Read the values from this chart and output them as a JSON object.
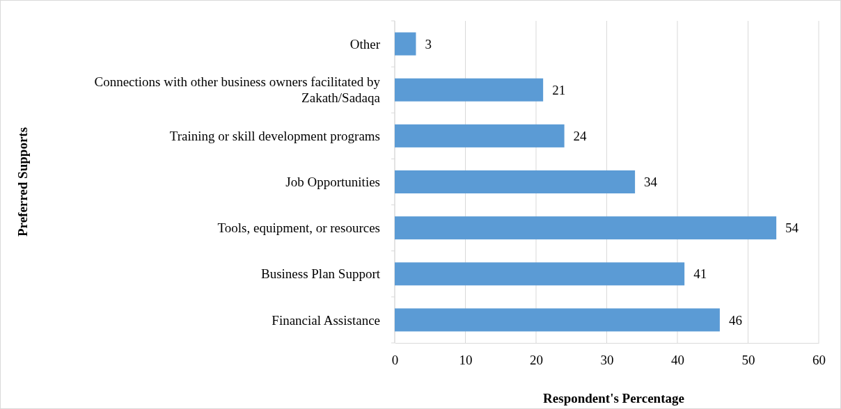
{
  "chart_data": {
    "type": "bar",
    "orientation": "horizontal",
    "xlabel": "Respondent's Percentage",
    "ylabel": "Preferred Supports",
    "categories": [
      "Other",
      "Connections with other business owners facilitated by Zakath/Sadaqa",
      "Training or skill development programs",
      "Job Opportunities",
      "Tools, equipment, or resources",
      "Business Plan Support",
      "Financial Assistance"
    ],
    "values": [
      3,
      21,
      24,
      34,
      54,
      41,
      46
    ],
    "color": "#5b9bd5",
    "xlim": [
      0,
      60
    ],
    "xticks": [
      0,
      10,
      20,
      30,
      40,
      50,
      60
    ],
    "grid": "x",
    "data_labels": true
  }
}
